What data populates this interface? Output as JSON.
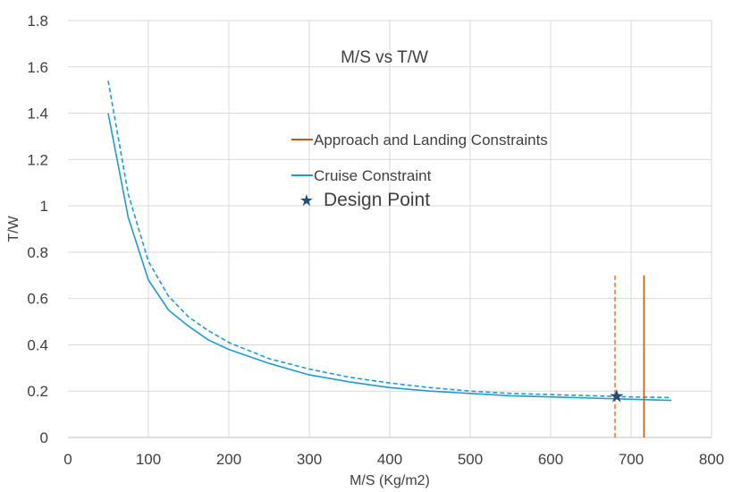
{
  "chart_data": {
    "type": "line",
    "title": "M/S vs T/W",
    "xlabel": "M/S (Kg/m2)",
    "ylabel": "T/W",
    "xlim": [
      0,
      800
    ],
    "ylim": [
      0,
      1.8
    ],
    "xticks": [
      "0",
      "100",
      "200",
      "300",
      "400",
      "500",
      "600",
      "700",
      "800"
    ],
    "yticks": [
      "0",
      "0.2",
      "0.4",
      "0.6",
      "0.8",
      "1",
      "1.2",
      "1.4",
      "1.6",
      "1.8"
    ],
    "grid": true,
    "legend": [
      {
        "label": "Approach and Landing Constraints",
        "color": "#C55A11"
      },
      {
        "label": "Cruise Constraint",
        "color": "#1F9BD7"
      },
      {
        "label": "Design Point",
        "color": "#1F4E79",
        "marker": "star"
      }
    ],
    "series": [
      {
        "name": "Cruise Constraint",
        "color": "#1F9BD7",
        "style": "solid",
        "x": [
          50,
          75,
          100,
          125,
          150,
          175,
          200,
          250,
          300,
          350,
          400,
          450,
          500,
          550,
          600,
          650,
          700,
          750
        ],
        "y": [
          1.4,
          0.95,
          0.68,
          0.55,
          0.48,
          0.42,
          0.38,
          0.32,
          0.27,
          0.24,
          0.215,
          0.2,
          0.19,
          0.18,
          0.175,
          0.17,
          0.165,
          0.16
        ]
      },
      {
        "color": "#1F9BD7",
        "style": "dashed",
        "x": [
          50,
          75,
          100,
          125,
          150,
          175,
          200,
          250,
          300,
          350,
          400,
          450,
          500,
          550,
          600,
          650,
          700,
          750
        ],
        "y": [
          1.54,
          1.05,
          0.76,
          0.61,
          0.52,
          0.46,
          0.41,
          0.34,
          0.295,
          0.26,
          0.235,
          0.215,
          0.2,
          0.19,
          0.185,
          0.18,
          0.175,
          0.172
        ]
      },
      {
        "name": "Approach and Landing Constraints",
        "color": "#C55A11",
        "style": "solid",
        "x": [
          716,
          716
        ],
        "y": [
          0,
          0.7
        ]
      },
      {
        "color": "#ED7D31",
        "style": "dashed",
        "x": [
          680,
          680
        ],
        "y": [
          0,
          0.7
        ]
      }
    ],
    "design_point": {
      "label": "Design Point",
      "x": 682,
      "y": 0.18,
      "color": "#1F4E79"
    }
  }
}
